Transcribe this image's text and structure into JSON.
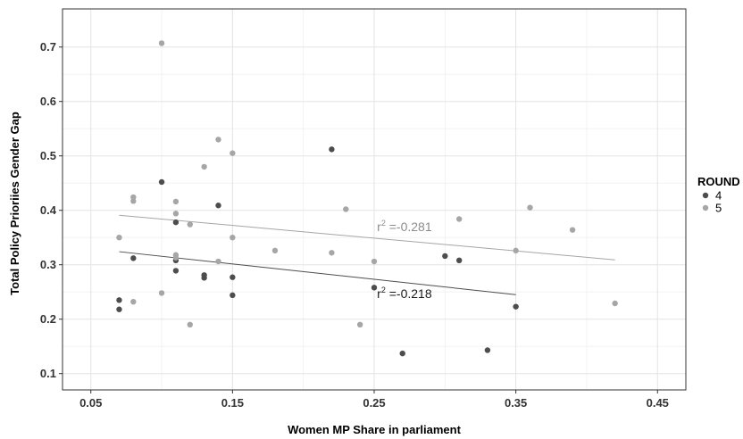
{
  "chart_data": {
    "type": "scatter",
    "xlabel": "Women MP Share in parliament",
    "ylabel": "Total Policy Prioriies Gender Gap",
    "xlim": [
      0.03,
      0.47
    ],
    "ylim": [
      0.07,
      0.77
    ],
    "x_ticks": [
      "0.05",
      "0.15",
      "0.25",
      "0.35",
      "0.45"
    ],
    "y_ticks": [
      "0.1",
      "0.2",
      "0.3",
      "0.4",
      "0.5",
      "0.6",
      "0.7"
    ],
    "grid": true,
    "legend": {
      "title": "ROUND",
      "position": "right"
    },
    "series": [
      {
        "name": "4",
        "color": "#4d4d4d",
        "points": [
          [
            0.07,
            0.235
          ],
          [
            0.07,
            0.218
          ],
          [
            0.08,
            0.312
          ],
          [
            0.1,
            0.452
          ],
          [
            0.11,
            0.378
          ],
          [
            0.11,
            0.308
          ],
          [
            0.11,
            0.289
          ],
          [
            0.13,
            0.281
          ],
          [
            0.13,
            0.276
          ],
          [
            0.14,
            0.409
          ],
          [
            0.15,
            0.277
          ],
          [
            0.15,
            0.244
          ],
          [
            0.22,
            0.512
          ],
          [
            0.25,
            0.258
          ],
          [
            0.27,
            0.137
          ],
          [
            0.3,
            0.316
          ],
          [
            0.31,
            0.308
          ],
          [
            0.33,
            0.143
          ],
          [
            0.35,
            0.223
          ]
        ],
        "trend": {
          "x": [
            0.07,
            0.35
          ],
          "y": [
            0.324,
            0.245
          ]
        }
      },
      {
        "name": "5",
        "color": "#a6a6a6",
        "points": [
          [
            0.07,
            0.35
          ],
          [
            0.08,
            0.424
          ],
          [
            0.08,
            0.417
          ],
          [
            0.08,
            0.232
          ],
          [
            0.1,
            0.707
          ],
          [
            0.1,
            0.248
          ],
          [
            0.11,
            0.416
          ],
          [
            0.11,
            0.394
          ],
          [
            0.11,
            0.318
          ],
          [
            0.11,
            0.313
          ],
          [
            0.12,
            0.374
          ],
          [
            0.12,
            0.19
          ],
          [
            0.13,
            0.48
          ],
          [
            0.14,
            0.53
          ],
          [
            0.14,
            0.306
          ],
          [
            0.15,
            0.505
          ],
          [
            0.15,
            0.35
          ],
          [
            0.18,
            0.326
          ],
          [
            0.22,
            0.322
          ],
          [
            0.23,
            0.402
          ],
          [
            0.24,
            0.19
          ],
          [
            0.25,
            0.306
          ],
          [
            0.31,
            0.384
          ],
          [
            0.35,
            0.326
          ],
          [
            0.36,
            0.405
          ],
          [
            0.39,
            0.364
          ],
          [
            0.42,
            0.229
          ]
        ],
        "trend": {
          "x": [
            0.07,
            0.42
          ],
          "y": [
            0.391,
            0.309
          ]
        }
      }
    ],
    "annotations": [
      {
        "base": "r",
        "sup": "2",
        "value": " =-0.281",
        "series": "5",
        "x": 0.252,
        "y": 0.362
      },
      {
        "base": "r",
        "sup": "2",
        "value": " =-0.218",
        "series": "4",
        "x": 0.252,
        "y": 0.239
      }
    ]
  }
}
